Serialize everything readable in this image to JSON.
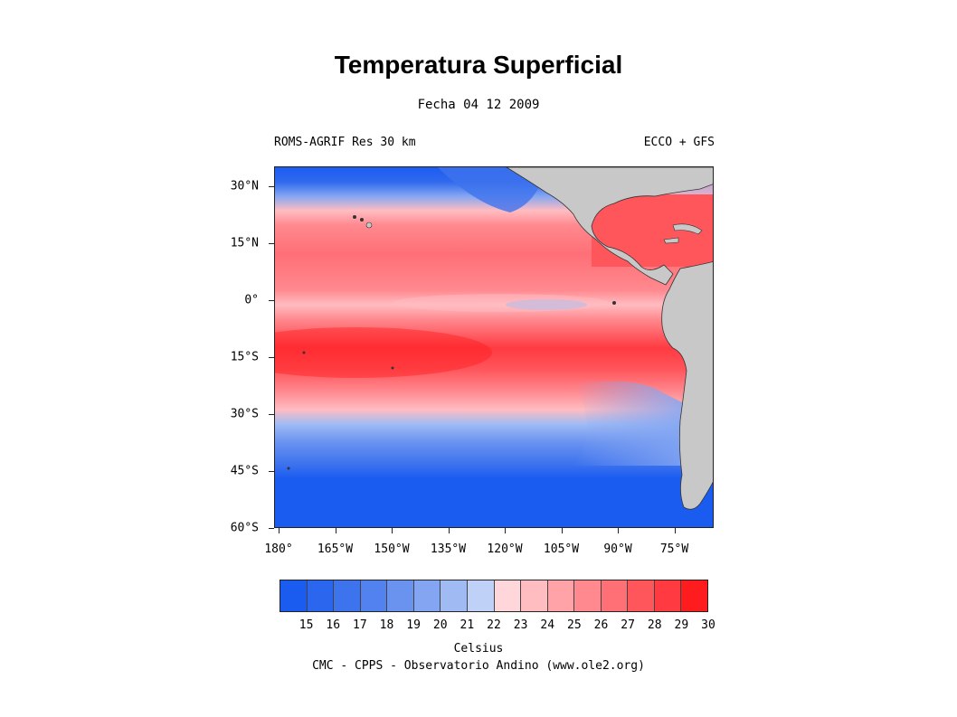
{
  "title": "Temperatura Superficial",
  "subtitle": "Fecha 04 12 2009",
  "left_header": "ROMS-AGRIF Res 30 km",
  "right_header": "ECCO + GFS",
  "lat_labels": [
    "30°N",
    "15°N",
    "0°",
    "15°S",
    "30°S",
    "45°S",
    "60°S"
  ],
  "lon_labels": [
    "180°",
    "165°W",
    "150°W",
    "135°W",
    "120°W",
    "105°W",
    "90°W",
    "75°W"
  ],
  "colorbar": {
    "labels": [
      "15",
      "16",
      "17",
      "18",
      "19",
      "20",
      "21",
      "22",
      "23",
      "24",
      "25",
      "26",
      "27",
      "28",
      "29",
      "30"
    ],
    "colors": [
      "#1b5cf0",
      "#2b66ee",
      "#3e73ee",
      "#5282ef",
      "#6a93f0",
      "#84a6f2",
      "#a0bbf4",
      "#bfd1f7",
      "#ffd6da",
      "#ffbcc1",
      "#ffa3a9",
      "#ff898f",
      "#ff6f76",
      "#ff565c",
      "#ff3a41",
      "#ff1c1f"
    ]
  },
  "units": "Celsius",
  "credits": "CMC - CPPS - Observatorio Andino (www.ole2.org)",
  "land_color": "#c8c8c8"
}
